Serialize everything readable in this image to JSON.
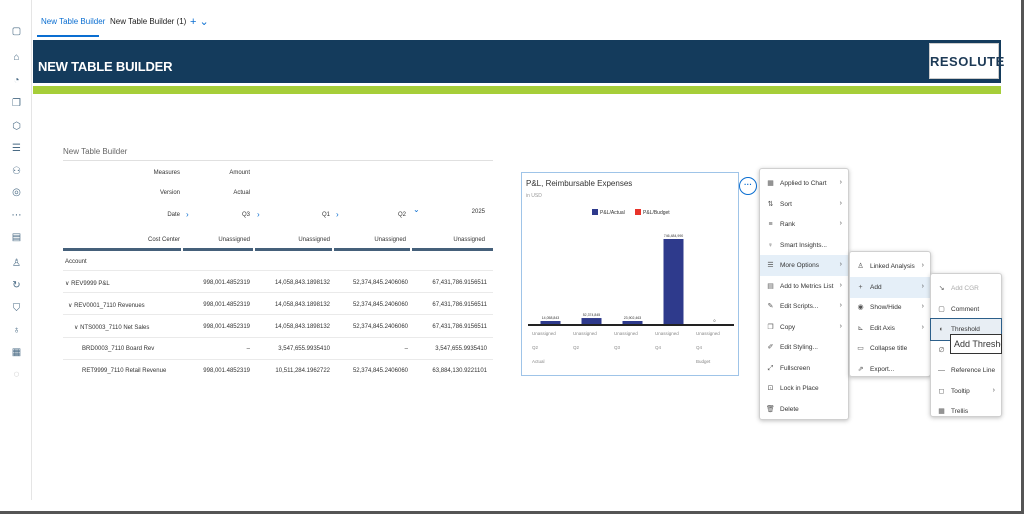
{
  "tabs": [
    {
      "label": "New Table Builder",
      "active": true
    },
    {
      "label": "New Table Builder (1)",
      "active": false
    }
  ],
  "tab_add_label": "+ ⌄",
  "banner": {
    "title": "NEW TABLE BUILDER",
    "logo": "RESOLUTE"
  },
  "colors": {
    "banner": "#143b5c",
    "green_bar": "#a6ce39",
    "accent": "#0a6ed1",
    "actual": "#2e3a8c",
    "budget": "#e8332a"
  },
  "table": {
    "title": "New Table Builder",
    "measures_label": "Measures",
    "measures_value": "Amount",
    "version_label": "Version",
    "version_value": "Actual",
    "date_label": "Date",
    "date_columns": [
      "Q3",
      "Q1",
      "Q2",
      "2025"
    ],
    "cost_center_label": "Cost Center",
    "cost_center_values": [
      "Unassigned",
      "Unassigned",
      "Unassigned",
      "Unassigned"
    ],
    "account_label": "Account",
    "rows": [
      {
        "label": "REV9999 P&L",
        "prefix": "∨",
        "values": [
          "998,001.4852319",
          "14,058,843.1898132",
          "52,374,845.2406060",
          "67,431,786.9156511"
        ]
      },
      {
        "label": "REV0001_7110 Revenues",
        "prefix": "∨",
        "values": [
          "998,001.4852319",
          "14,058,843.1898132",
          "52,374,845.2406060",
          "67,431,786.9156511"
        ]
      },
      {
        "label": "NTS0003_7110 Net Sales",
        "prefix": "∨",
        "values": [
          "998,001.4852319",
          "14,058,843.1898132",
          "52,374,845.2406060",
          "67,431,786.9156511"
        ]
      },
      {
        "label": "BRD0003_7110 Board Rev",
        "prefix": "",
        "values": [
          "–",
          "3,547,655.9935410",
          "–",
          "3,547,655.9935410"
        ]
      },
      {
        "label": "RET9999_7110 Retail Revenue",
        "prefix": "",
        "values": [
          "998,001.4852319",
          "10,511,284.1962722",
          "52,374,845.2406060",
          "63,884,130.9221101"
        ]
      }
    ]
  },
  "chart_data": {
    "type": "bar",
    "title": "P&L, Reimbursable Expenses",
    "subtitle": "in USD",
    "legend": [
      "P&L/Actual",
      "P&L/Budget"
    ],
    "legend_position": "top",
    "categories": [
      "Q2",
      "Q2",
      "Q3",
      "Q4",
      "Q4"
    ],
    "category_sublabels": [
      "Unassigned",
      "Unassigned",
      "Unassigned",
      "Unassigned",
      "Unassigned"
    ],
    "group_labels": [
      "Actual",
      "",
      "",
      "",
      "Budget"
    ],
    "series": [
      {
        "name": "P&L/Actual",
        "values": [
          14058843,
          52374845,
          23902463,
          746484990,
          0
        ]
      }
    ],
    "data_labels": [
      "14,058,843",
      "52,374,845",
      "23,902,463",
      "746,484,990",
      "0"
    ]
  },
  "menu_main": [
    {
      "label": "Applied to Chart",
      "icon": "chart-icon",
      "sub": true
    },
    {
      "label": "Sort",
      "icon": "sort-icon",
      "sub": true
    },
    {
      "label": "Rank",
      "icon": "rank-icon",
      "sub": true
    },
    {
      "label": "Smart Insights...",
      "icon": "bulb-icon",
      "sub": false
    },
    {
      "label": "More Options",
      "icon": "options-icon",
      "sub": true
    },
    {
      "label": "Add to Metrics List",
      "icon": "metrics-icon",
      "sub": true
    },
    {
      "label": "Edit Scripts...",
      "icon": "script-icon",
      "sub": true
    },
    {
      "label": "Copy",
      "icon": "copy-icon",
      "sub": true
    },
    {
      "label": "Edit Styling...",
      "icon": "styling-icon",
      "sub": false
    },
    {
      "label": "Fullscreen",
      "icon": "fullscreen-icon",
      "sub": false
    },
    {
      "label": "Lock in Place",
      "icon": "lock-icon",
      "sub": false
    },
    {
      "label": "Delete",
      "icon": "delete-icon",
      "sub": false
    }
  ],
  "menu_more": [
    {
      "label": "Linked Analysis",
      "icon": "linked-icon",
      "sub": true
    },
    {
      "label": "Add",
      "icon": "plus-icon",
      "sub": true
    },
    {
      "label": "Show/Hide",
      "icon": "eye-icon",
      "sub": true
    },
    {
      "label": "Edit Axis",
      "icon": "axis-icon",
      "sub": true
    },
    {
      "label": "Collapse title",
      "icon": "collapse-icon",
      "sub": false
    },
    {
      "label": "Export...",
      "icon": "export-icon",
      "sub": false
    }
  ],
  "menu_add": [
    {
      "label": "Add CGR",
      "icon": "cgr-icon",
      "disabled": true
    },
    {
      "label": "Comment",
      "icon": "comment-icon"
    },
    {
      "label": "Threshold",
      "icon": "threshold-icon",
      "selected": true
    },
    {
      "label": "",
      "icon": "link-icon"
    },
    {
      "label": "Reference Line",
      "icon": "reference-icon"
    },
    {
      "label": "Tooltip",
      "icon": "tooltip-icon",
      "sub": true
    },
    {
      "label": "Trellis",
      "icon": "trellis-icon"
    }
  ],
  "tooltip_text": "Add Threshold"
}
